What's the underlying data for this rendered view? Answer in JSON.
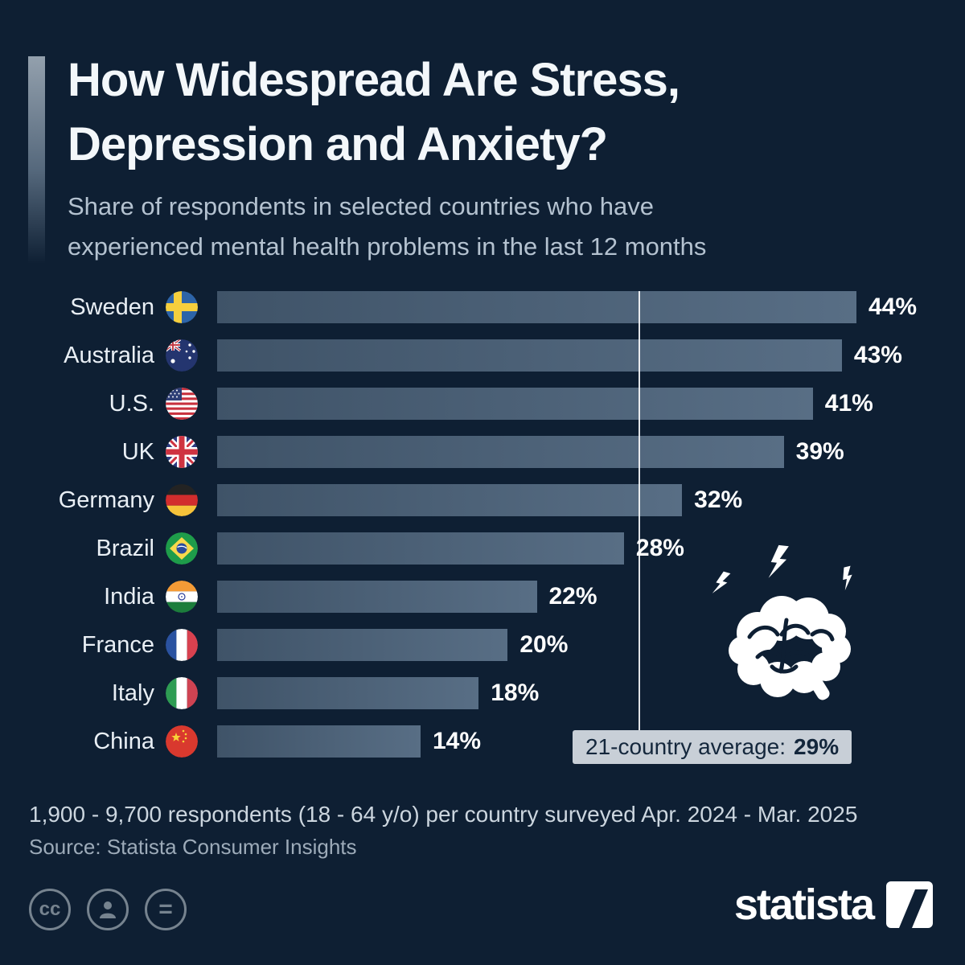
{
  "colors": {
    "background": "#0e1f33",
    "bar": "#4e6378",
    "title_text": "#f3f7fa",
    "subtitle_text": "#b4c2d0",
    "average_box_bg": "#c8cfd7",
    "average_box_text": "#14273c",
    "footer_text": "#ccd6df",
    "license_icon": "#76838f"
  },
  "header": {
    "title_line1": "How Widespread Are Stress,",
    "title_line2": "Depression and Anxiety?",
    "subtitle_line1": "Share of respondents in selected countries who have",
    "subtitle_line2": "experienced mental health problems in the last 12 months"
  },
  "chart_data": {
    "type": "bar",
    "orientation": "horizontal",
    "title": "How Widespread Are Stress, Depression and Anxiety?",
    "subtitle": "Share of respondents in selected countries who have experienced mental health problems in the last 12 months",
    "categories": [
      "Sweden",
      "Australia",
      "U.S.",
      "UK",
      "Germany",
      "Brazil",
      "India",
      "France",
      "Italy",
      "China"
    ],
    "values": [
      44,
      43,
      41,
      39,
      32,
      28,
      22,
      20,
      18,
      14
    ],
    "value_labels": [
      "44%",
      "43%",
      "41%",
      "39%",
      "32%",
      "28%",
      "22%",
      "20%",
      "18%",
      "14%"
    ],
    "flag_icons": [
      "flag-sweden-icon",
      "flag-australia-icon",
      "flag-us-icon",
      "flag-uk-icon",
      "flag-germany-icon",
      "flag-brazil-icon",
      "flag-india-icon",
      "flag-france-icon",
      "flag-italy-icon",
      "flag-china-icon"
    ],
    "xlim": [
      0,
      44
    ],
    "grid": false,
    "legend": false,
    "reference_line": {
      "value": 29,
      "label": "21-country average:",
      "value_label": "29%"
    }
  },
  "decoration": {
    "brain_icon": "brain-with-lightning-bolts"
  },
  "footer": {
    "note": "1,900 - 9,700 respondents (18 - 64 y/o) per country surveyed Apr. 2024 - Mar. 2025",
    "source": "Source: Statista Consumer Insights",
    "brand": "statista"
  },
  "icons": {
    "license": [
      {
        "name": "cc-icon",
        "glyph": "cc"
      },
      {
        "name": "attribution-person-icon",
        "glyph": "person"
      },
      {
        "name": "equals-icon",
        "glyph": "="
      }
    ],
    "brand_logo": "statista-logo"
  }
}
